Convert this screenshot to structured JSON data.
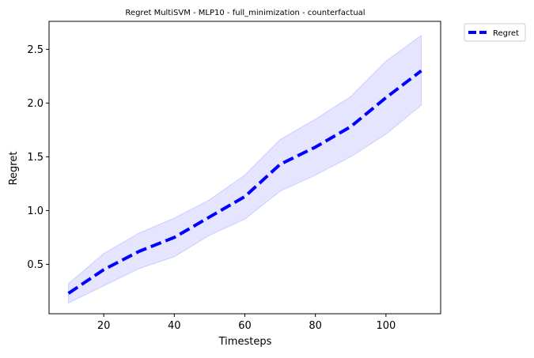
{
  "chart_data": {
    "type": "line",
    "title": "Regret MultiSVM - MLP10 - full_minimization - counterfactual",
    "xlabel": "Timesteps",
    "ylabel": "Regret",
    "xlim": [
      4.5,
      115.5
    ],
    "ylim": [
      0.04,
      2.76
    ],
    "xticks": [
      20,
      40,
      60,
      80,
      100
    ],
    "yticks": [
      0.5,
      1.0,
      1.5,
      2.0,
      2.5
    ],
    "xtick_labels": [
      "20",
      "40",
      "60",
      "80",
      "100"
    ],
    "ytick_labels": [
      "0.5",
      "1.0",
      "1.5",
      "2.0",
      "2.5"
    ],
    "grid": false,
    "legend_position": "upper right, outside the axes",
    "x": [
      10,
      20,
      30,
      40,
      50,
      60,
      70,
      80,
      90,
      100,
      110
    ],
    "series": [
      {
        "name": "Regret",
        "color": "#0000ff",
        "line_style": "dashed",
        "values": [
          0.23,
          0.45,
          0.62,
          0.75,
          0.94,
          1.13,
          1.43,
          1.59,
          1.78,
          2.05,
          2.3
        ],
        "band_lower": [
          0.14,
          0.3,
          0.46,
          0.57,
          0.77,
          0.92,
          1.18,
          1.33,
          1.5,
          1.71,
          1.98
        ],
        "band_upper": [
          0.32,
          0.6,
          0.79,
          0.93,
          1.1,
          1.33,
          1.66,
          1.85,
          2.06,
          2.39,
          2.63
        ],
        "band_color": "#0000ff"
      }
    ]
  }
}
